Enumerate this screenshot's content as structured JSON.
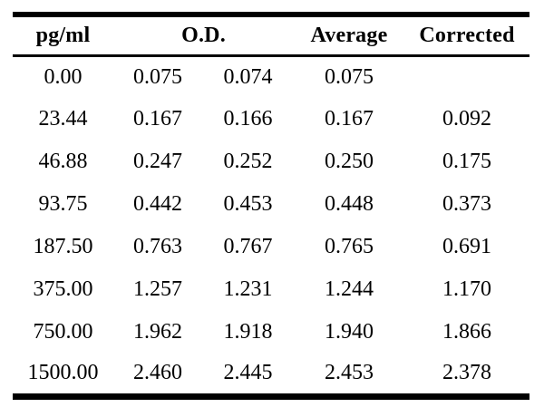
{
  "table": {
    "title_semantic": "standard-curve-concentration-od-table",
    "header": {
      "pg_ml": "pg/ml",
      "od": "O.D.",
      "average": "Average",
      "corrected": "Corrected"
    },
    "rows": [
      [
        "0.00",
        "0.075",
        "0.074",
        "0.075",
        ""
      ],
      [
        "23.44",
        "0.167",
        "0.166",
        "0.167",
        "0.092"
      ],
      [
        "46.88",
        "0.247",
        "0.252",
        "0.250",
        "0.175"
      ],
      [
        "93.75",
        "0.442",
        "0.453",
        "0.448",
        "0.373"
      ],
      [
        "187.50",
        "0.763",
        "0.767",
        "0.765",
        "0.691"
      ],
      [
        "375.00",
        "1.257",
        "1.231",
        "1.244",
        "1.170"
      ],
      [
        "750.00",
        "1.962",
        "1.918",
        "1.940",
        "1.866"
      ],
      [
        "1500.00",
        "2.460",
        "2.445",
        "2.453",
        "2.378"
      ]
    ],
    "style": {
      "text_color": "#000000",
      "rule_color": "#000000",
      "background": "#ffffff"
    }
  }
}
